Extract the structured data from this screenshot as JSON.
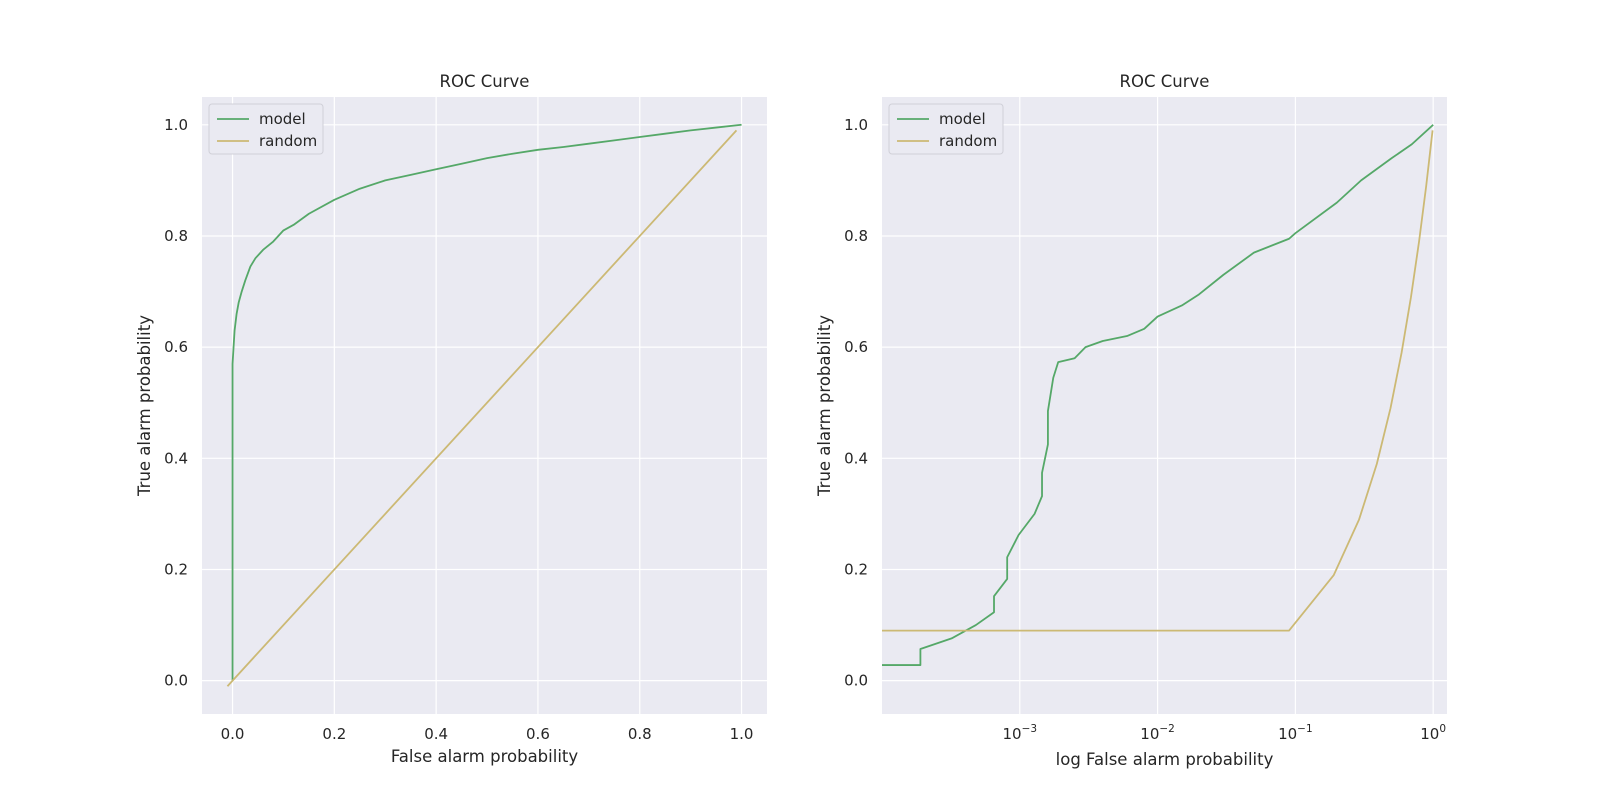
{
  "colors": {
    "model": "#55a868",
    "random": "#ccb974",
    "background": "#eaeaf2",
    "grid": "#ffffff"
  },
  "chart_data": [
    {
      "type": "line",
      "title": "ROC Curve",
      "xlabel": "False alarm probability",
      "ylabel": "True alarm probability",
      "xscale": "linear",
      "xlim": [
        -0.06,
        1.05
      ],
      "ylim": [
        -0.06,
        1.05
      ],
      "xticks": [
        0.0,
        0.2,
        0.4,
        0.6,
        0.8,
        1.0
      ],
      "xtick_labels": [
        "0.0",
        "0.2",
        "0.4",
        "0.6",
        "0.8",
        "1.0"
      ],
      "yticks": [
        0.0,
        0.2,
        0.4,
        0.6,
        0.8,
        1.0
      ],
      "ytick_labels": [
        "0.0",
        "0.2",
        "0.4",
        "0.6",
        "0.8",
        "1.0"
      ],
      "grid": true,
      "legend": "upper-left",
      "series": [
        {
          "name": "model",
          "color": "#55a868",
          "x": [
            0.0,
            0.0,
            0.002,
            0.004,
            0.008,
            0.012,
            0.018,
            0.025,
            0.035,
            0.045,
            0.06,
            0.08,
            0.1,
            0.12,
            0.15,
            0.2,
            0.25,
            0.3,
            0.35,
            0.4,
            0.45,
            0.5,
            0.55,
            0.6,
            0.65,
            0.7,
            0.75,
            0.8,
            0.85,
            0.9,
            0.95,
            1.0
          ],
          "y": [
            0.0,
            0.57,
            0.6,
            0.63,
            0.66,
            0.68,
            0.7,
            0.72,
            0.745,
            0.76,
            0.775,
            0.79,
            0.81,
            0.82,
            0.84,
            0.865,
            0.885,
            0.9,
            0.91,
            0.92,
            0.93,
            0.94,
            0.948,
            0.955,
            0.96,
            0.966,
            0.972,
            0.978,
            0.984,
            0.99,
            0.995,
            1.0
          ]
        },
        {
          "name": "random",
          "color": "#ccb974",
          "x": [
            -0.01,
            0.99
          ],
          "y": [
            -0.01,
            0.99
          ]
        }
      ]
    },
    {
      "type": "line",
      "title": "ROC Curve",
      "xlabel": "log False alarm probability",
      "ylabel": "True alarm probability",
      "xscale": "log",
      "xlim": [
        0.0001,
        1.26
      ],
      "ylim": [
        -0.06,
        1.05
      ],
      "xticks": [
        0.001,
        0.01,
        0.1,
        1
      ],
      "xtick_labels": [
        {
          "base": "10",
          "exp": "−3"
        },
        {
          "base": "10",
          "exp": "−2"
        },
        {
          "base": "10",
          "exp": "−1"
        },
        {
          "base": "10",
          "exp": "0"
        }
      ],
      "yticks": [
        0.0,
        0.2,
        0.4,
        0.6,
        0.8,
        1.0
      ],
      "ytick_labels": [
        "0.0",
        "0.2",
        "0.4",
        "0.6",
        "0.8",
        "1.0"
      ],
      "grid": true,
      "legend": "upper-left",
      "series": [
        {
          "name": "model",
          "color": "#55a868",
          "x": [
            0.0001,
            0.00019,
            0.00019,
            0.00032,
            0.00048,
            0.00065,
            0.00065,
            0.00081,
            0.00081,
            0.00098,
            0.00128,
            0.00145,
            0.00145,
            0.0016,
            0.0016,
            0.00175,
            0.0019,
            0.0025,
            0.003,
            0.004,
            0.006,
            0.008,
            0.01,
            0.015,
            0.02,
            0.03,
            0.05,
            0.09,
            0.1,
            0.2,
            0.3,
            0.5,
            0.7,
            1.0
          ],
          "y": [
            0.028,
            0.028,
            0.057,
            0.076,
            0.1,
            0.123,
            0.152,
            0.183,
            0.222,
            0.262,
            0.3,
            0.332,
            0.374,
            0.425,
            0.485,
            0.545,
            0.573,
            0.58,
            0.6,
            0.611,
            0.62,
            0.633,
            0.655,
            0.675,
            0.695,
            0.73,
            0.77,
            0.795,
            0.805,
            0.86,
            0.9,
            0.94,
            0.965,
            1.0
          ]
        },
        {
          "name": "random",
          "color": "#ccb974",
          "x": [
            0.0001,
            0.09,
            0.19,
            0.29,
            0.39,
            0.49,
            0.59,
            0.69,
            0.79,
            0.89,
            0.99
          ],
          "y": [
            0.09,
            0.09,
            0.19,
            0.29,
            0.39,
            0.49,
            0.59,
            0.69,
            0.79,
            0.89,
            0.99
          ]
        }
      ]
    }
  ]
}
